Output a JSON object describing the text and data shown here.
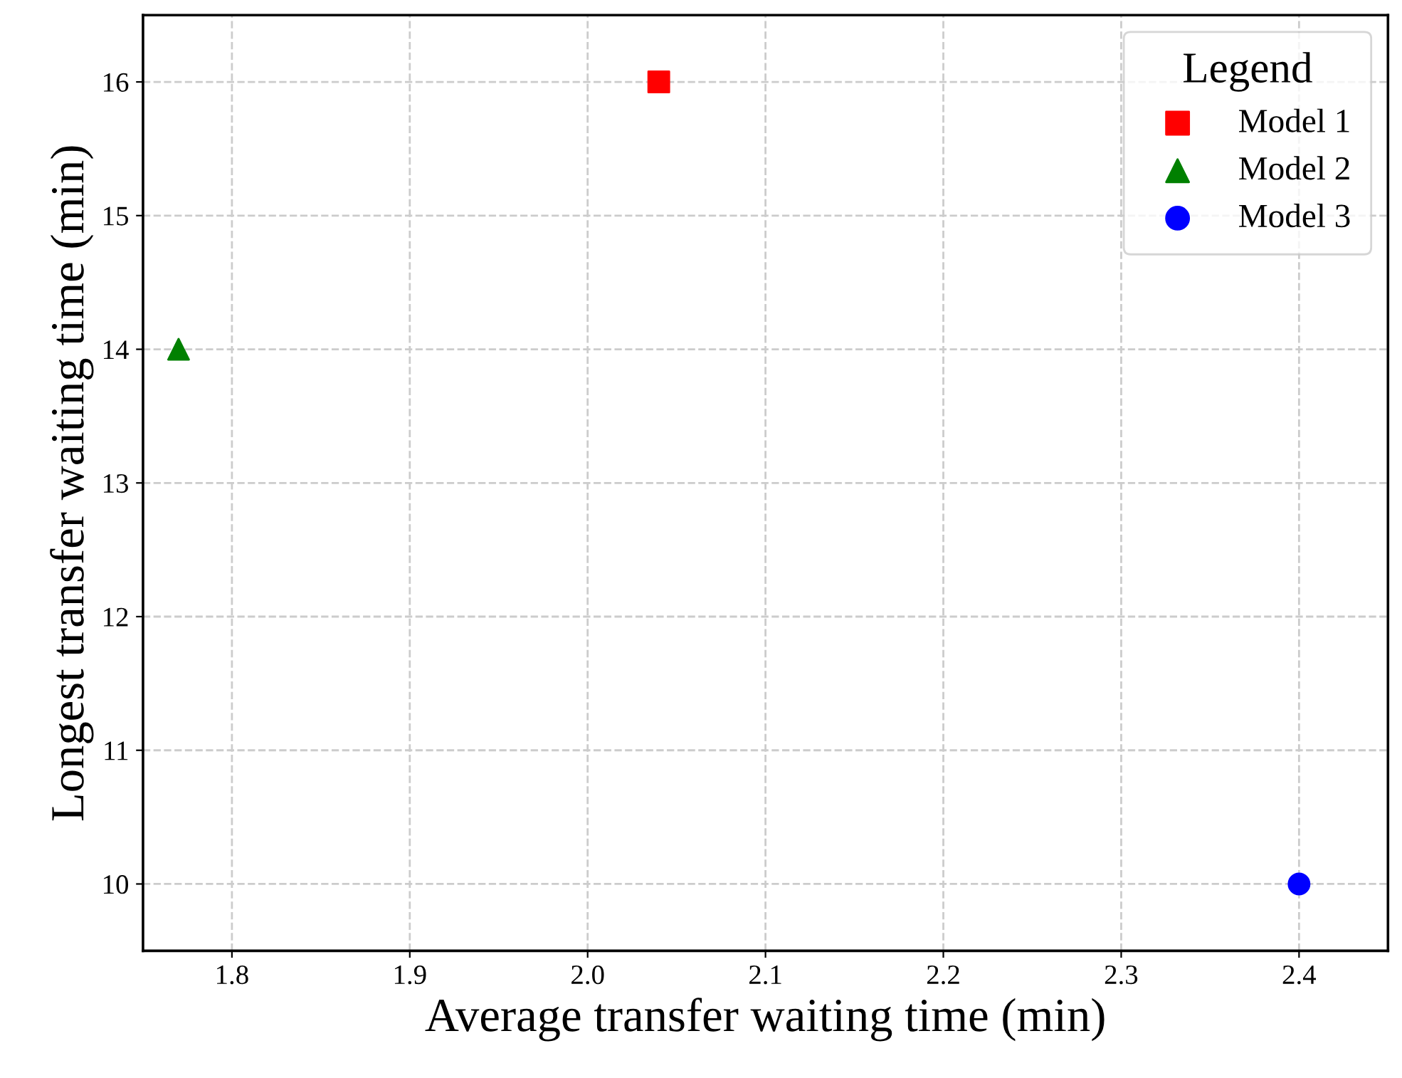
{
  "chart_data": {
    "type": "scatter",
    "xlabel": "Average transfer waiting time (min)",
    "ylabel": "Longest transfer waiting time (min)",
    "legend_title": "Legend",
    "series": [
      {
        "name": "Model 1",
        "color": "#ff0000",
        "marker": "square",
        "x": [
          2.04
        ],
        "values": [
          16
        ]
      },
      {
        "name": "Model 2",
        "color": "#008000",
        "marker": "triangle",
        "x": [
          1.77
        ],
        "values": [
          14
        ]
      },
      {
        "name": "Model 3",
        "color": "#0000ff",
        "marker": "circle",
        "x": [
          2.4
        ],
        "values": [
          10
        ]
      }
    ],
    "xlim": [
      1.75,
      2.45
    ],
    "xticks": [
      {
        "value": 1.8,
        "label": "1.8"
      },
      {
        "value": 1.9,
        "label": "1.9"
      },
      {
        "value": 2.0,
        "label": "2.0"
      },
      {
        "value": 2.1,
        "label": "2.1"
      },
      {
        "value": 2.2,
        "label": "2.2"
      },
      {
        "value": 2.3,
        "label": "2.3"
      },
      {
        "value": 2.4,
        "label": "2.4"
      }
    ],
    "ylim": [
      9.5,
      16.5
    ],
    "yticks": [
      10,
      11,
      12,
      13,
      14,
      15,
      16
    ],
    "grid": true,
    "legend": "top right"
  }
}
